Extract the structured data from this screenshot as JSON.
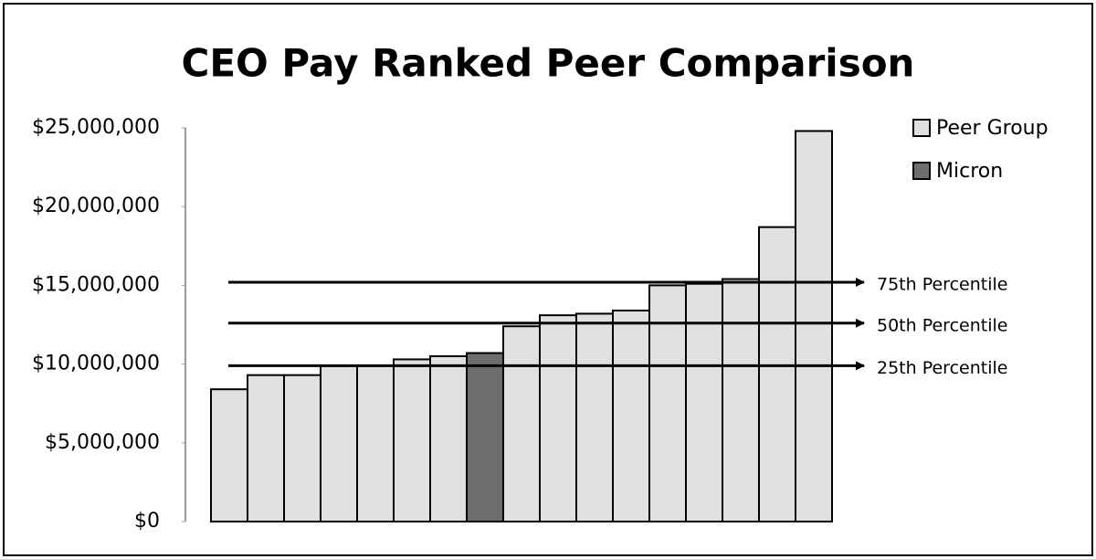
{
  "chart_data": {
    "type": "bar",
    "title": "CEO Pay Ranked Peer Comparison",
    "categories": [
      null,
      null,
      null,
      null,
      null,
      null,
      null,
      null,
      null,
      null,
      null,
      null,
      null,
      null,
      null,
      null,
      null
    ],
    "series": [
      {
        "name": "Peer Group",
        "color": "#e0e0e0",
        "values": [
          8400000,
          9300000,
          9300000,
          9900000,
          9900000,
          10300000,
          10500000,
          null,
          12400000,
          13100000,
          13200000,
          13400000,
          15000000,
          15100000,
          15400000,
          18700000,
          24800000
        ]
      },
      {
        "name": "Micron",
        "color": "#6d6d6d",
        "values": [
          null,
          null,
          null,
          null,
          null,
          null,
          null,
          10700000,
          null,
          null,
          null,
          null,
          null,
          null,
          null,
          null,
          null
        ]
      }
    ],
    "ylim": [
      0,
      25000000
    ],
    "yticks": [
      {
        "value": 0,
        "label": "$0"
      },
      {
        "value": 5000000,
        "label": "$5,000,000"
      },
      {
        "value": 10000000,
        "label": "$10,000,000"
      },
      {
        "value": 15000000,
        "label": "$15,000,000"
      },
      {
        "value": 20000000,
        "label": "$20,000,000"
      },
      {
        "value": 25000000,
        "label": "$25,000,000"
      }
    ],
    "grid": false,
    "reference_lines": [
      {
        "label": "75th Percentile",
        "value": 15200000
      },
      {
        "label": "50th Percentile",
        "value": 12600000
      },
      {
        "label": "25th Percentile",
        "value": 9900000
      }
    ]
  }
}
